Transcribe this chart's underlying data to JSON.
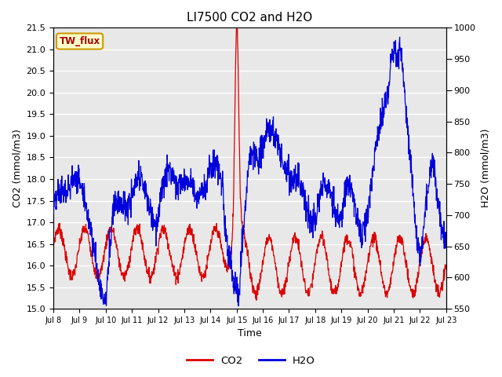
{
  "title": "LI7500 CO2 and H2O",
  "xlabel": "Time",
  "ylabel_left": "CO2 (mmol/m3)",
  "ylabel_right": "H2O (mmol/m3)",
  "ylim_left": [
    15.0,
    21.5
  ],
  "ylim_right": [
    550,
    1000
  ],
  "yticks_left": [
    15.0,
    15.5,
    16.0,
    16.5,
    17.0,
    17.5,
    18.0,
    18.5,
    19.0,
    19.5,
    20.0,
    20.5,
    21.0,
    21.5
  ],
  "yticks_right": [
    550,
    600,
    650,
    700,
    750,
    800,
    850,
    900,
    950,
    1000
  ],
  "xtick_labels": [
    "Jul 8",
    "Jul 9",
    "Jul 10",
    "Jul 11",
    "Jul 12",
    "Jul 13",
    "Jul 14",
    "Jul 15",
    "Jul 16",
    "Jul 17",
    "Jul 18",
    "Jul 19",
    "Jul 20",
    "Jul 21",
    "Jul 22",
    "Jul 23"
  ],
  "co2_color": "#dd0000",
  "h2o_color": "#0000dd",
  "plot_bg_color": "#e8e8e8",
  "title_fontsize": 11,
  "axis_fontsize": 9,
  "tick_fontsize": 8,
  "label_box_facecolor": "#ffffcc",
  "label_box_edgecolor": "#cc9900",
  "label_box_text": "TW_flux",
  "label_box_textcolor": "#aa0000",
  "legend_co2_label": "CO2",
  "legend_h2o_label": "H2O"
}
